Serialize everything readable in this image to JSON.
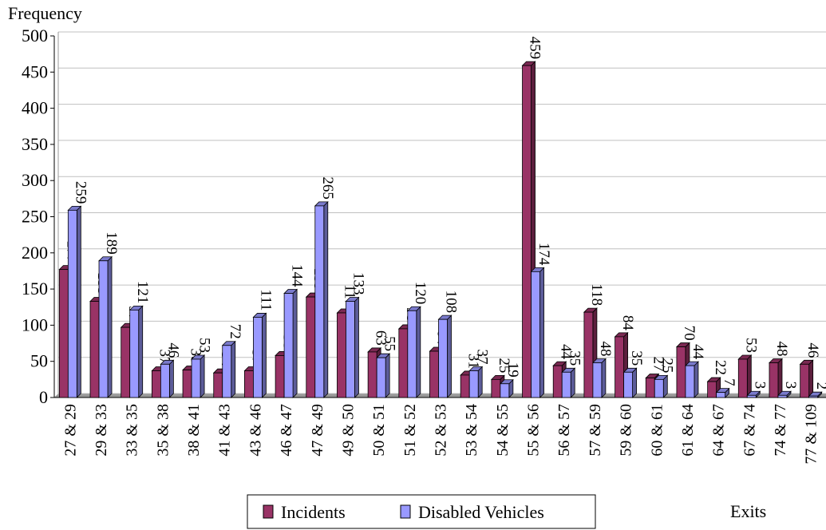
{
  "chart_data": {
    "type": "bar",
    "y_label": "Frequency",
    "x_label": "Exits",
    "categories": [
      "27 & 29",
      "29 & 33",
      "33 & 35",
      "35 & 38",
      "38 & 41",
      "41 & 43",
      "43 & 46",
      "46 & 47",
      "47 & 49",
      "49 & 50",
      "50 & 51",
      "51 & 52",
      "52 & 53",
      "53 & 54",
      "54 & 55",
      "55 & 56",
      "56 & 57",
      "57 & 59",
      "59 & 60",
      "60 & 61",
      "61 & 64",
      "64 & 67",
      "67 & 74",
      "74 & 77",
      "77 & 109"
    ],
    "series": [
      {
        "name": "Incidents",
        "color": "#993366",
        "values": [
          177,
          133,
          97,
          37,
          38,
          34,
          37,
          58,
          139,
          117,
          63,
          95,
          64,
          31,
          25,
          459,
          44,
          118,
          84,
          27,
          70,
          22,
          53,
          48,
          46
        ]
      },
      {
        "name": "Disabled Vehicles",
        "color": "#9999ff",
        "values": [
          259,
          189,
          121,
          46,
          53,
          72,
          111,
          144,
          265,
          133,
          55,
          120,
          108,
          37,
          19,
          174,
          35,
          48,
          35,
          25,
          44,
          7,
          3,
          3,
          2
        ]
      }
    ],
    "ylim": [
      0,
      500
    ],
    "yticks": [
      0,
      50,
      100,
      150,
      200,
      250,
      300,
      350,
      400,
      450,
      500
    ],
    "grid": true,
    "legend": "bottom"
  }
}
